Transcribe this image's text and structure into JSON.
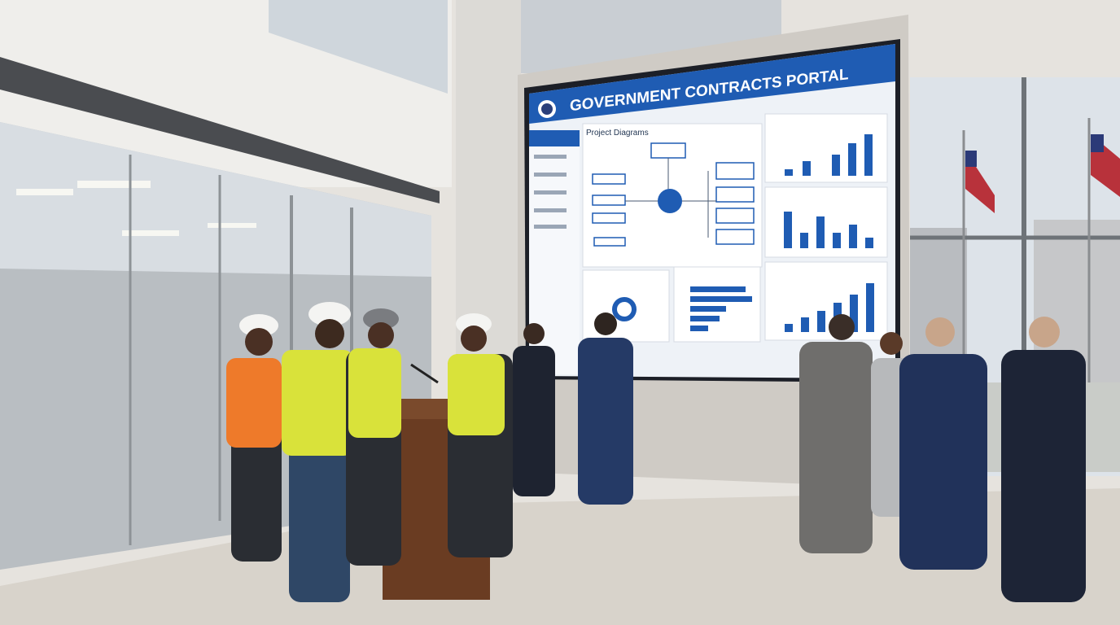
{
  "screen": {
    "title": "GOVERNMENT CONTRACTS PORTAL",
    "panel_title": "Project Diagrams"
  }
}
